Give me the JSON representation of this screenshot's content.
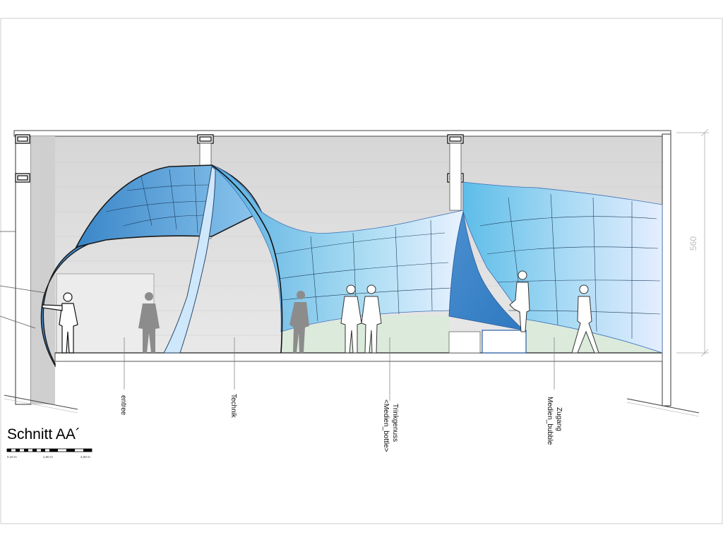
{
  "title": "Schnitt AA´",
  "dimension": "560",
  "scale_bar": {
    "labels": [
      "0,10 m",
      "1,00 m",
      "2,00 m"
    ]
  },
  "zones": [
    {
      "lines": [
        "entree"
      ]
    },
    {
      "lines": [
        "Technik"
      ]
    },
    {
      "lines": [
        "Trinkgenuss",
        "<Medien_bottle>"
      ]
    },
    {
      "lines": [
        "Zugang",
        "Medien_bubble"
      ]
    }
  ],
  "colors": {
    "membrane_dark": "#3a8fd4",
    "membrane_light": "#e6f0ff",
    "floor_green": "#d9ead7",
    "wall_grey": "#dedede"
  }
}
